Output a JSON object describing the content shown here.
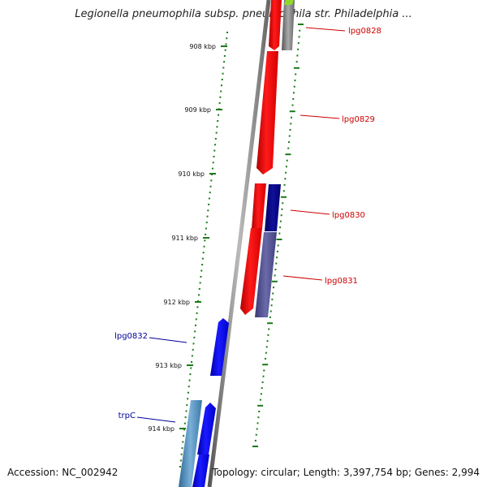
{
  "title": "Legionella pneumophila subsp. pneumophila str. Philadelphia ...",
  "accession": "Accession: NC_002942",
  "summary": "Topology: circular; Length: 3,397,754 bp; Genes: 2,994",
  "ruler_ticks": [
    {
      "label": "908 kbp",
      "kbp": 908
    },
    {
      "label": "909 kbp",
      "kbp": 909
    },
    {
      "label": "910 kbp",
      "kbp": 910
    },
    {
      "label": "911 kbp",
      "kbp": 911
    },
    {
      "label": "912 kbp",
      "kbp": 912
    },
    {
      "label": "913 kbp",
      "kbp": 913
    },
    {
      "label": "914 kbp",
      "kbp": 914
    }
  ],
  "genes": [
    {
      "label": "lpg0828",
      "strand": "forward",
      "color": "#cc0000"
    },
    {
      "label": "lpg0829",
      "strand": "forward",
      "color": "#cc0000"
    },
    {
      "label": "lpg0830",
      "strand": "forward",
      "color": "#cc0000"
    },
    {
      "label": "lpg0831",
      "strand": "forward",
      "color": "#cc0000"
    },
    {
      "label": "lpg0832",
      "strand": "reverse",
      "color": "#000099"
    },
    {
      "label": "trpC",
      "strand": "reverse",
      "color": "#000099"
    }
  ],
  "colors": {
    "forward_gene": "#ff0000",
    "reverse_gene": "#0000ee",
    "ruler": "#1a7a1a",
    "backbone": "#888888"
  }
}
